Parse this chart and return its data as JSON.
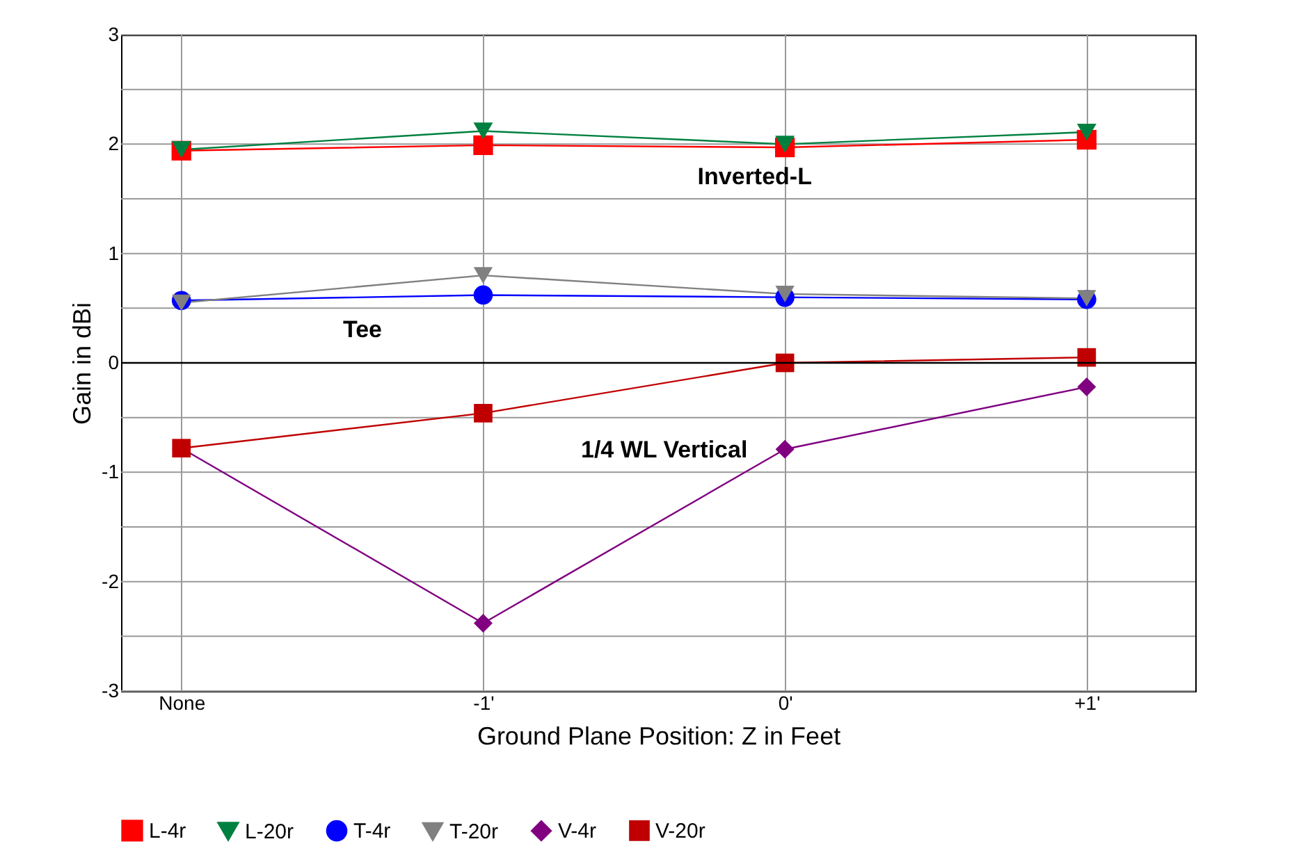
{
  "chart_data": {
    "type": "line",
    "xlabel": "Ground Plane Position: Z in Feet",
    "ylabel": "Gain in dBi",
    "categories": [
      "None",
      "-1'",
      "0'",
      "+1'"
    ],
    "ylim": [
      -3,
      3
    ],
    "yticks": [
      -3,
      {
        "value": -2.5,
        "label": null
      },
      -2,
      {
        "value": -1.5,
        "label": null
      },
      -1,
      {
        "value": -0.5,
        "label": null
      },
      0,
      {
        "value": 0.5,
        "label": null
      },
      1,
      {
        "value": 1.5,
        "label": null
      },
      2,
      {
        "value": 2.5,
        "label": null
      },
      3
    ],
    "grid": true,
    "legend": "bottom",
    "line_style": "solid",
    "annotations": [
      "Inverted-L",
      "Tee",
      "1/4 WL Vertical"
    ],
    "series": [
      {
        "name": "L-4r",
        "color": "#ff0000",
        "marker": "square",
        "values": [
          1.94,
          1.99,
          1.97,
          2.04
        ]
      },
      {
        "name": "L-20r",
        "color": "#008040",
        "marker": "triangle",
        "values": [
          1.95,
          2.12,
          2.0,
          2.11
        ]
      },
      {
        "name": "T-4r",
        "color": "#0000ff",
        "marker": "circle",
        "values": [
          0.57,
          0.62,
          0.6,
          0.58
        ]
      },
      {
        "name": "T-20r",
        "color": "#808080",
        "marker": "triangle",
        "values": [
          0.55,
          0.8,
          0.63,
          0.59
        ]
      },
      {
        "name": "V-4r",
        "color": "#800080",
        "marker": "diamond",
        "values": [
          -0.78,
          -2.38,
          -0.79,
          -0.22
        ]
      },
      {
        "name": "V-20r",
        "color": "#c00000",
        "marker": "square",
        "values": [
          -0.78,
          -0.46,
          0.0,
          0.05
        ]
      }
    ]
  }
}
